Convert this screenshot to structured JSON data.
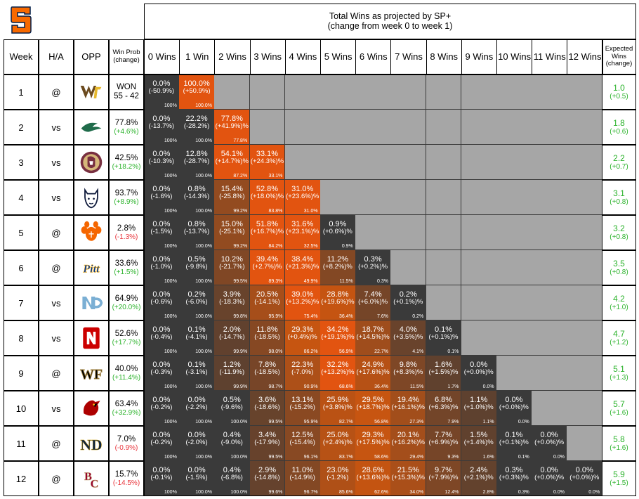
{
  "header": {
    "title_line1": "Total Wins as projected by SP+",
    "title_line2": "(change from week 0 to week 1)",
    "col_week": "Week",
    "col_ha": "H/A",
    "col_opp": "OPP",
    "col_winprob_1": "Win Prob",
    "col_winprob_2": "(change)",
    "col_expected_1": "Expected",
    "col_expected_2": "Wins",
    "col_expected_3": "(change)",
    "win_columns": [
      "0 Wins",
      "1 Win",
      "2 Wins",
      "3 Wins",
      "4 Wins",
      "5 Wins",
      "6 Wins",
      "7 Wins",
      "8 Wins",
      "9 Wins",
      "10 Wins",
      "11 Wins",
      "12 Wins"
    ]
  },
  "colors": {
    "cum_high": "#e25410",
    "dark": "#3a3a3a",
    "blank": "#a6a6a6",
    "pos": "#2cb32c",
    "neg": "#e8333a",
    "syracuse_orange": "#f76900"
  },
  "rows": [
    {
      "week": "1",
      "ha": "@",
      "opp_icon": "western-michigan-logo",
      "wp": "WON",
      "wp2": "55 - 42",
      "wp_sign": "none",
      "exp": "1.0",
      "exp_chg": "(+0.5)",
      "cells": [
        [
          "0.0%",
          "(-50.9%)",
          "100%"
        ],
        [
          "100.0%",
          "(+50.9%)",
          "100.0%"
        ]
      ]
    },
    {
      "week": "2",
      "ha": "vs",
      "opp_icon": "eastern-michigan-logo",
      "wp": "77.8%",
      "wp2": "(+4.6%)",
      "wp_sign": "pos",
      "exp": "1.8",
      "exp_chg": "(+0.6)",
      "cells": [
        [
          "0.0%",
          "(-13.7%)",
          "100%"
        ],
        [
          "22.2%",
          "(-28.2%)",
          "100.0%"
        ],
        [
          "77.8%",
          "(+41.9%)%",
          "77.8%"
        ]
      ]
    },
    {
      "week": "3",
      "ha": "vs",
      "opp_icon": "florida-state-logo",
      "wp": "42.5%",
      "wp2": "(+18.2%)",
      "wp_sign": "pos",
      "exp": "2.2",
      "exp_chg": "(+0.7)",
      "cells": [
        [
          "0.0%",
          "(-10.3%)",
          "100%"
        ],
        [
          "12.8%",
          "(-28.7%)",
          "100.0%"
        ],
        [
          "54.1%",
          "(+14.7%)%",
          "87.2%"
        ],
        [
          "33.1%",
          "(+24.3%)%",
          "33.1%"
        ]
      ]
    },
    {
      "week": "4",
      "ha": "vs",
      "opp_icon": "uconn-logo",
      "wp": "93.7%",
      "wp2": "(+8.9%)",
      "wp_sign": "pos",
      "exp": "3.1",
      "exp_chg": "(+0.8)",
      "cells": [
        [
          "0.0%",
          "(-1.6%)",
          "100%"
        ],
        [
          "0.8%",
          "(-14.3%)",
          "100.0%"
        ],
        [
          "15.4%",
          "(-25.8%)",
          "99.2%"
        ],
        [
          "52.8%",
          "(+18.0%)%",
          "83.8%"
        ],
        [
          "31.0%",
          "(+23.6%)%",
          "31.0%"
        ]
      ]
    },
    {
      "week": "5",
      "ha": "@",
      "opp_icon": "clemson-logo",
      "wp": "2.8%",
      "wp2": "(-1.3%)",
      "wp_sign": "neg",
      "exp": "3.2",
      "exp_chg": "(+0.8)",
      "cells": [
        [
          "0.0%",
          "(-1.5%)",
          "100%"
        ],
        [
          "0.8%",
          "(-13.7%)",
          "100.0%"
        ],
        [
          "15.0%",
          "(-25.1%)",
          "99.2%"
        ],
        [
          "51.8%",
          "(+16.7%)%",
          "84.2%"
        ],
        [
          "31.6%",
          "(+23.1%)%",
          "32.5%"
        ],
        [
          "0.9%",
          "(+0.6%)%",
          "0.9%"
        ]
      ]
    },
    {
      "week": "6",
      "ha": "@",
      "opp_icon": "pitt-logo",
      "wp": "33.6%",
      "wp2": "(+1.5%)",
      "wp_sign": "pos",
      "exp": "3.5",
      "exp_chg": "(+0.8)",
      "cells": [
        [
          "0.0%",
          "(-1.0%)",
          "100%"
        ],
        [
          "0.5%",
          "(-9.8%)",
          "100.0%"
        ],
        [
          "10.2%",
          "(-21.7%)",
          "99.5%"
        ],
        [
          "39.4%",
          "(+2.7%)%",
          "89.3%"
        ],
        [
          "38.4%",
          "(+21.3%)%",
          "49.9%"
        ],
        [
          "11.2%",
          "(+8.2%)%",
          "11.5%"
        ],
        [
          "0.3%",
          "(+0.2%)%",
          "0.3%"
        ]
      ]
    },
    {
      "week": "7",
      "ha": "vs",
      "opp_icon": "unc-logo",
      "wp": "64.9%",
      "wp2": "(+20.0%)",
      "wp_sign": "pos",
      "exp": "4.2",
      "exp_chg": "(+1.0)",
      "cells": [
        [
          "0.0%",
          "(-0.6%)",
          "100%"
        ],
        [
          "0.2%",
          "(-6.0%)",
          "100.0%"
        ],
        [
          "3.9%",
          "(-18.3%)",
          "99.8%"
        ],
        [
          "20.5%",
          "(-14.1%)",
          "95.9%"
        ],
        [
          "39.0%",
          "(+13.2%)%",
          "75.4%"
        ],
        [
          "28.8%",
          "(+19.6%)%",
          "36.4%"
        ],
        [
          "7.4%",
          "(+6.0%)%",
          "7.6%"
        ],
        [
          "0.2%",
          "(+0.1%)%",
          "0.2%"
        ]
      ]
    },
    {
      "week": "8",
      "ha": "vs",
      "opp_icon": "nc-state-logo",
      "wp": "52.6%",
      "wp2": "(+17.7%)",
      "wp_sign": "pos",
      "exp": "4.7",
      "exp_chg": "(+1.2)",
      "cells": [
        [
          "0.0%",
          "(-0.4%)",
          "100%"
        ],
        [
          "0.1%",
          "(-4.1%)",
          "100.0%"
        ],
        [
          "2.0%",
          "(-14.7%)",
          "99.9%"
        ],
        [
          "11.8%",
          "(-18.5%)",
          "98.0%"
        ],
        [
          "29.3%",
          "(+0.4%)%",
          "86.2%"
        ],
        [
          "34.2%",
          "(+19.1%)%",
          "56.9%"
        ],
        [
          "18.7%",
          "(+14.5%)%",
          "22.7%"
        ],
        [
          "4.0%",
          "(+3.5%)%",
          "4.1%"
        ],
        [
          "0.1%",
          "(+0.1%)%",
          "0.1%"
        ]
      ]
    },
    {
      "week": "9",
      "ha": "@",
      "opp_icon": "wake-forest-logo",
      "wp": "40.0%",
      "wp2": "(+11.4%)",
      "wp_sign": "pos",
      "exp": "5.1",
      "exp_chg": "(+1.3)",
      "cells": [
        [
          "0.0%",
          "(-0.3%)",
          "100%"
        ],
        [
          "0.1%",
          "(-3.1%)",
          "100.0%"
        ],
        [
          "1.2%",
          "(-11.9%)",
          "99.9%"
        ],
        [
          "7.8%",
          "(-18.5%)",
          "98.7%"
        ],
        [
          "22.3%",
          "(-7.0%)",
          "90.9%"
        ],
        [
          "32.2%",
          "(+13.2%)%",
          "68.6%"
        ],
        [
          "24.9%",
          "(+17.6%)%",
          "36.4%"
        ],
        [
          "9.8%",
          "(+8.3%)%",
          "11.5%"
        ],
        [
          "1.6%",
          "(+1.5%)%",
          "1.7%"
        ],
        [
          "0.0%",
          "(+0.0%)%",
          "0.0%"
        ]
      ]
    },
    {
      "week": "10",
      "ha": "vs",
      "opp_icon": "louisville-logo",
      "wp": "63.4%",
      "wp2": "(+32.9%)",
      "wp_sign": "pos",
      "exp": "5.7",
      "exp_chg": "(+1.6)",
      "cells": [
        [
          "0.0%",
          "(-0.2%)",
          "100%"
        ],
        [
          "0.0%",
          "(-2.2%)",
          "100.0%"
        ],
        [
          "0.5%",
          "(-9.6%)",
          "100.0%"
        ],
        [
          "3.6%",
          "(-18.6%)",
          "99.5%"
        ],
        [
          "13.1%",
          "(-15.2%)",
          "95.9%"
        ],
        [
          "25.9%",
          "(+3.8%)%",
          "82.7%"
        ],
        [
          "29.5%",
          "(+18.7%)%",
          "56.8%"
        ],
        [
          "19.4%",
          "(+16.1%)%",
          "27.3%"
        ],
        [
          "6.8%",
          "(+6.3%)%",
          "7.9%"
        ],
        [
          "1.1%",
          "(+1.0%)%",
          "1.1%"
        ],
        [
          "0.0%",
          "(+0.0%)%",
          "0.0%"
        ]
      ]
    },
    {
      "week": "11",
      "ha": "@",
      "opp_icon": "notre-dame-logo",
      "wp": "7.0%",
      "wp2": "(-0.9%)",
      "wp_sign": "neg",
      "exp": "5.8",
      "exp_chg": "(+1.6)",
      "cells": [
        [
          "0.0%",
          "(-0.2%)",
          "100%"
        ],
        [
          "0.0%",
          "(-2.0%)",
          "100.0%"
        ],
        [
          "0.4%",
          "(-9.0%)",
          "100.0%"
        ],
        [
          "3.4%",
          "(-17.9%)",
          "99.5%"
        ],
        [
          "12.5%",
          "(-15.4%)",
          "96.1%"
        ],
        [
          "25.0%",
          "(+2.4%)%",
          "83.7%"
        ],
        [
          "29.3%",
          "(+17.5%)%",
          "58.6%"
        ],
        [
          "20.1%",
          "(+16.2%)%",
          "29.4%"
        ],
        [
          "7.7%",
          "(+6.9%)%",
          "9.3%"
        ],
        [
          "1.5%",
          "(+1.4%)%",
          "1.6%"
        ],
        [
          "0.1%",
          "(+0.1%)%",
          "0.1%"
        ],
        [
          "0.0%",
          "(+0.0%)%",
          "0.0%"
        ]
      ]
    },
    {
      "week": "12",
      "ha": "@",
      "opp_icon": "boston-college-logo",
      "wp": "15.7%",
      "wp2": "(-14.5%)",
      "wp_sign": "neg",
      "exp": "5.9",
      "exp_chg": "(+1.5)",
      "cells": [
        [
          "0.0%",
          "(-0.1%)",
          "100%"
        ],
        [
          "0.0%",
          "(-1.5%)",
          "100.0%"
        ],
        [
          "0.4%",
          "(-6.8%)",
          "100.0%"
        ],
        [
          "2.9%",
          "(-14.8%)",
          "99.6%"
        ],
        [
          "11.0%",
          "(-14.9%)",
          "96.7%"
        ],
        [
          "23.0%",
          "(-1.2%)",
          "85.6%"
        ],
        [
          "28.6%",
          "(+13.6%)%",
          "62.6%"
        ],
        [
          "21.5%",
          "(+15.3%)%",
          "34.0%"
        ],
        [
          "9.7%",
          "(+7.9%)%",
          "12.4%"
        ],
        [
          "2.4%",
          "(+2.1%)%",
          "2.8%"
        ],
        [
          "0.3%",
          "(+0.3%)%",
          "0.3%"
        ],
        [
          "0.0%",
          "(+0.0%)%",
          "0.0%"
        ],
        [
          "0.0%",
          "(+0.0%)%",
          "0.0%"
        ]
      ]
    }
  ]
}
